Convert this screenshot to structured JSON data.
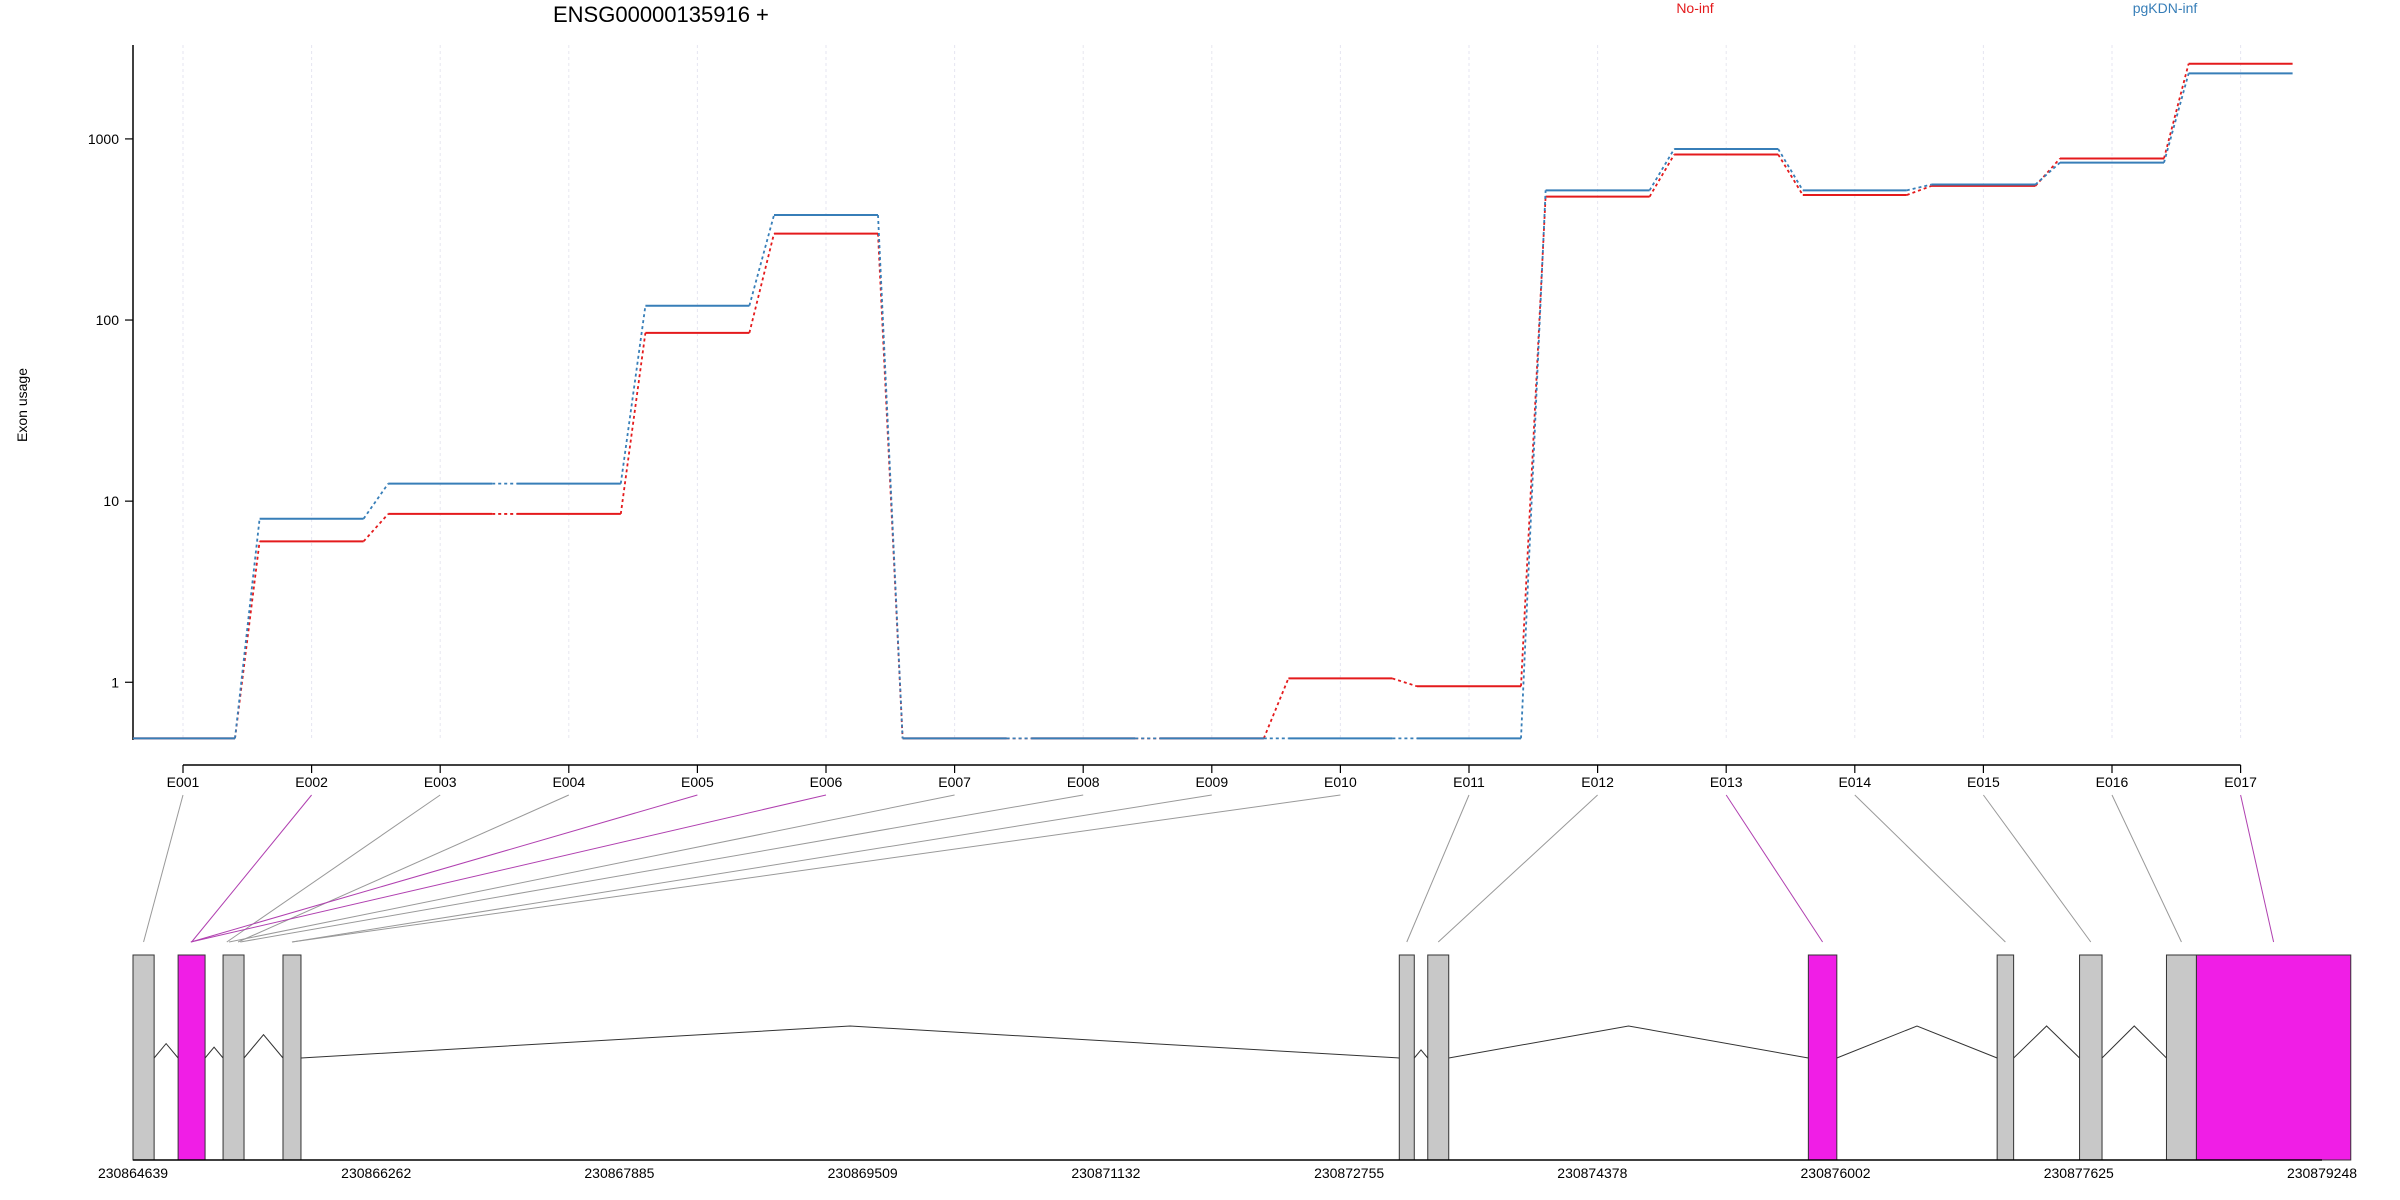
{
  "chart_data": {
    "type": "line",
    "title": "ENSG00000135916 +",
    "ylabel": "Exon usage",
    "xlabel": "",
    "yscale": "log",
    "ylim": [
      0.48,
      3300
    ],
    "yticks": [
      1,
      10,
      100,
      1000
    ],
    "ytick_labels": [
      "1",
      "10",
      "100",
      "1000"
    ],
    "grid": "vertical dotted lines at exon positions",
    "legend_placement": "top, one label per series above plot",
    "categories": [
      "E001",
      "E002",
      "E003",
      "E004",
      "E005",
      "E006",
      "E007",
      "E008",
      "E009",
      "E010",
      "E011",
      "E012",
      "E013",
      "E014",
      "E015",
      "E016",
      "E017"
    ],
    "series": [
      {
        "name": "No-inf",
        "color": "#e41a1c",
        "values": [
          0.49,
          6,
          8.5,
          8.5,
          85,
          300,
          0.49,
          0.49,
          0.49,
          1.05,
          0.95,
          480,
          820,
          490,
          550,
          780,
          2600
        ]
      },
      {
        "name": "pgKDN-inf",
        "color": "#377eb8",
        "values": [
          0.49,
          8,
          12.5,
          12.5,
          120,
          380,
          0.49,
          0.49,
          0.49,
          0.49,
          0.49,
          520,
          880,
          520,
          560,
          740,
          2300
        ]
      }
    ],
    "gene_model": {
      "coordinate_labels": [
        "230864639",
        "230866262",
        "230867885",
        "230869509",
        "230871132",
        "230872755",
        "230874378",
        "230876002",
        "230877625",
        "230879248"
      ],
      "range": [
        230864639,
        230879248
      ],
      "exons": [
        {
          "id": "E001",
          "start": 230864639,
          "end": 230864780,
          "highlight": false
        },
        {
          "id": "E002",
          "start": 230864940,
          "end": 230865120,
          "highlight": true
        },
        {
          "id": "E003",
          "start": 230865240,
          "end": 230865290,
          "highlight": false
        },
        {
          "id": "E004",
          "start": 230865300,
          "end": 230865380,
          "highlight": false
        },
        {
          "id": "E005",
          "start": 230864950,
          "end": 230865100,
          "highlight": true
        },
        {
          "id": "E006",
          "start": 230864950,
          "end": 230865100,
          "highlight": true
        },
        {
          "id": "E007",
          "start": 230865260,
          "end": 230865300,
          "highlight": false
        },
        {
          "id": "E008",
          "start": 230865330,
          "end": 230865380,
          "highlight": false
        },
        {
          "id": "E009",
          "start": 230865640,
          "end": 230865760,
          "highlight": false
        },
        {
          "id": "E010",
          "start": 230865640,
          "end": 230865760,
          "highlight": false
        },
        {
          "id": "E011",
          "start": 230873090,
          "end": 230873190,
          "highlight": false
        },
        {
          "id": "E012",
          "start": 230873280,
          "end": 230873420,
          "highlight": false
        },
        {
          "id": "E013",
          "start": 230875820,
          "end": 230876010,
          "highlight": true
        },
        {
          "id": "E014",
          "start": 230877080,
          "end": 230877190,
          "highlight": false
        },
        {
          "id": "E015",
          "start": 230877630,
          "end": 230877780,
          "highlight": false
        },
        {
          "id": "E016",
          "start": 230878210,
          "end": 230878410,
          "highlight": false
        },
        {
          "id": "E017",
          "start": 230878410,
          "end": 230879440,
          "highlight": true
        }
      ],
      "boxes": [
        {
          "start": 230864639,
          "end": 230864780,
          "highlight": false
        },
        {
          "start": 230864940,
          "end": 230865120,
          "highlight": true
        },
        {
          "start": 230865240,
          "end": 230865380,
          "highlight": false
        },
        {
          "start": 230865640,
          "end": 230865760,
          "highlight": false
        },
        {
          "start": 230873090,
          "end": 230873190,
          "highlight": false
        },
        {
          "start": 230873280,
          "end": 230873420,
          "highlight": false
        },
        {
          "start": 230875820,
          "end": 230876010,
          "highlight": true
        },
        {
          "start": 230877080,
          "end": 230877190,
          "highlight": false
        },
        {
          "start": 230877630,
          "end": 230877780,
          "highlight": false
        },
        {
          "start": 230878210,
          "end": 230878410,
          "highlight": false
        },
        {
          "start": 230878410,
          "end": 230879440,
          "highlight": true
        }
      ],
      "colors": {
        "highlight": "#f01ee6",
        "normal": "#c8c8c8"
      }
    }
  }
}
